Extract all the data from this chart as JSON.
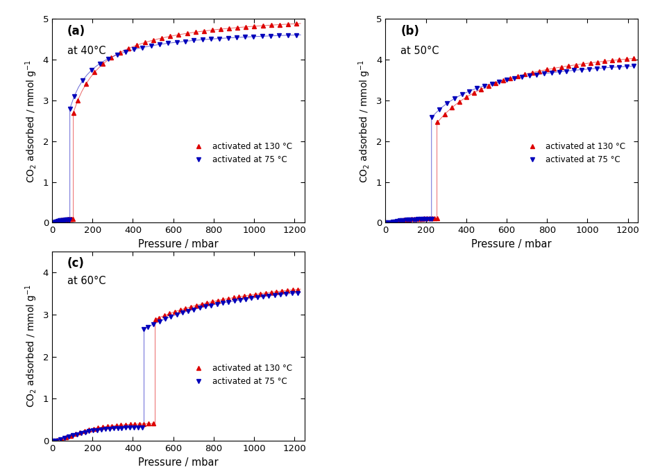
{
  "title_a": "(a)",
  "title_b": "(b)",
  "title_c": "(c)",
  "temp_a": "at 40°C",
  "temp_b": "at 50°C",
  "temp_c": "at 60°C",
  "xlabel": "Pressure / mbar",
  "ylabel": "CO$_2$ adsorbed / mmol g$^{-1}$",
  "legend_130": "activated at 130 °C",
  "legend_75": "activated at 75 °C",
  "color_130": "#dd0000",
  "color_75": "#0000bb",
  "xlim": [
    0,
    1250
  ],
  "ylim_ab": [
    0,
    5
  ],
  "ylim_c": [
    0,
    4.5
  ],
  "xticks": [
    0,
    200,
    400,
    600,
    800,
    1000,
    1200
  ],
  "yticks_ab": [
    0,
    1,
    2,
    3,
    4,
    5
  ],
  "yticks_c": [
    0,
    1,
    2,
    3,
    4
  ],
  "markersize": 5
}
